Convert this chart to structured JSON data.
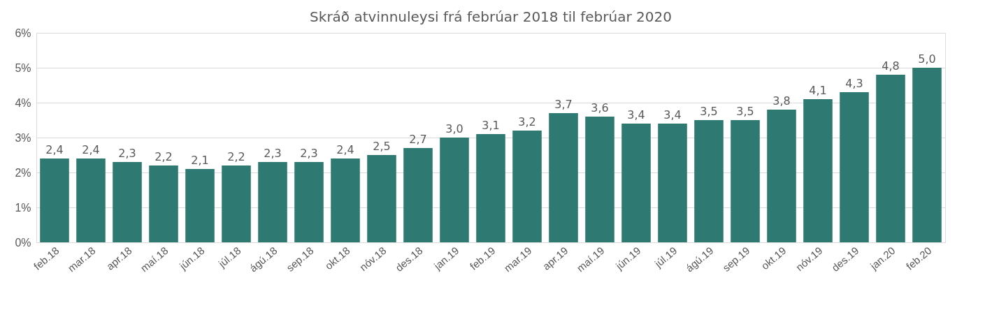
{
  "chart_data": {
    "type": "bar",
    "title": "Skráð atvinnuleysi frá febrúar 2018 til febrúar 2020",
    "categories": [
      "feb.18",
      "mar.18",
      "apr.18",
      "maí.18",
      "jún.18",
      "júl.18",
      "ágú.18",
      "sep.18",
      "okt.18",
      "nóv.18",
      "des.18",
      "jan.19",
      "feb.19",
      "mar.19",
      "apr.19",
      "maí.19",
      "jún.19",
      "júl.19",
      "ágú.19",
      "sep.19",
      "okt.19",
      "nóv.19",
      "des.19",
      "jan.20",
      "feb.20"
    ],
    "values": [
      2.4,
      2.4,
      2.3,
      2.2,
      2.1,
      2.2,
      2.3,
      2.3,
      2.4,
      2.5,
      2.7,
      3.0,
      3.1,
      3.2,
      3.7,
      3.6,
      3.4,
      3.4,
      3.5,
      3.5,
      3.8,
      4.1,
      4.3,
      4.8,
      5.0
    ],
    "value_labels": [
      "2,4",
      "2,4",
      "2,3",
      "2,2",
      "2,1",
      "2,2",
      "2,3",
      "2,3",
      "2,4",
      "2,5",
      "2,7",
      "3,0",
      "3,1",
      "3,2",
      "3,7",
      "3,6",
      "3,4",
      "3,4",
      "3,5",
      "3,5",
      "3,8",
      "4,1",
      "4,3",
      "4,8",
      "5,0"
    ],
    "color": "#2e7a72",
    "ylim": [
      0,
      6
    ],
    "yticks": [
      {
        "value": 0,
        "label": "0%"
      },
      {
        "value": 1,
        "label": "1%"
      },
      {
        "value": 2,
        "label": "2%"
      },
      {
        "value": 3,
        "label": "3%"
      },
      {
        "value": 4,
        "label": "4%"
      },
      {
        "value": 5,
        "label": "5%"
      },
      {
        "value": 6,
        "label": "6%"
      }
    ],
    "grid": "y"
  }
}
